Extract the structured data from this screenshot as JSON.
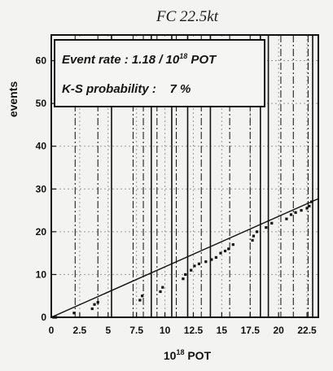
{
  "chart_data": {
    "type": "scatter",
    "title": "FC 22.5kt",
    "xlabel": "10",
    "xlabel_sup": "18",
    "xlabel_suffix": " POT",
    "ylabel": "events",
    "xlim": [
      0,
      23.5
    ],
    "ylim": [
      0,
      66
    ],
    "xticks": [
      0,
      2.5,
      5,
      7.5,
      10,
      12.5,
      15,
      17.5,
      20,
      22.5
    ],
    "xtick_labels": [
      "0",
      "2.5",
      "5",
      "7.5",
      "10",
      "12.5",
      "15",
      "17.5",
      "20",
      "22.5"
    ],
    "yticks": [
      0,
      10,
      20,
      30,
      40,
      50,
      60
    ],
    "ytick_labels": [
      "0",
      "10",
      "20",
      "30",
      "40",
      "50",
      "60"
    ],
    "grid": true,
    "annotation": {
      "line1_prefix": "Event rate : 1.18 / 10",
      "line1_sup": "18",
      "line1_suffix": " POT",
      "line2": "K-S probability :    7 %"
    },
    "expected_line": {
      "slope": 1.18,
      "x": [
        0,
        23.5
      ]
    },
    "points": [
      {
        "x": 0.2,
        "y": 0
      },
      {
        "x": 0.4,
        "y": 0
      },
      {
        "x": 2.0,
        "y": 1
      },
      {
        "x": 3.6,
        "y": 2
      },
      {
        "x": 3.8,
        "y": 3
      },
      {
        "x": 4.1,
        "y": 3.5
      },
      {
        "x": 7.8,
        "y": 4
      },
      {
        "x": 8.0,
        "y": 5
      },
      {
        "x": 9.6,
        "y": 6
      },
      {
        "x": 9.8,
        "y": 7
      },
      {
        "x": 11.6,
        "y": 9
      },
      {
        "x": 11.8,
        "y": 10
      },
      {
        "x": 12.3,
        "y": 11
      },
      {
        "x": 12.6,
        "y": 12
      },
      {
        "x": 13.0,
        "y": 12.5
      },
      {
        "x": 13.6,
        "y": 13
      },
      {
        "x": 14.1,
        "y": 13.5
      },
      {
        "x": 14.5,
        "y": 14
      },
      {
        "x": 14.9,
        "y": 15
      },
      {
        "x": 15.3,
        "y": 15.5
      },
      {
        "x": 15.6,
        "y": 16
      },
      {
        "x": 16.0,
        "y": 17
      },
      {
        "x": 17.7,
        "y": 18
      },
      {
        "x": 17.8,
        "y": 19
      },
      {
        "x": 18.1,
        "y": 20
      },
      {
        "x": 18.9,
        "y": 21
      },
      {
        "x": 19.4,
        "y": 22
      },
      {
        "x": 20.7,
        "y": 23
      },
      {
        "x": 21.1,
        "y": 24
      },
      {
        "x": 21.5,
        "y": 24.5
      },
      {
        "x": 22.0,
        "y": 25
      },
      {
        "x": 22.5,
        "y": 25.5
      },
      {
        "x": 22.7,
        "y": 26
      },
      {
        "x": 22.9,
        "y": 27
      }
    ],
    "run_boundaries": {
      "solid": [
        5.3,
        8.8,
        10.6,
        12.0,
        14.0,
        18.4,
        19.1,
        23.0
      ],
      "dashdot": [
        2.1,
        4.1,
        7.2,
        8.1,
        9.3,
        11.0,
        13.2,
        15.7,
        17.5,
        20.2,
        21.3,
        22.6
      ]
    }
  }
}
